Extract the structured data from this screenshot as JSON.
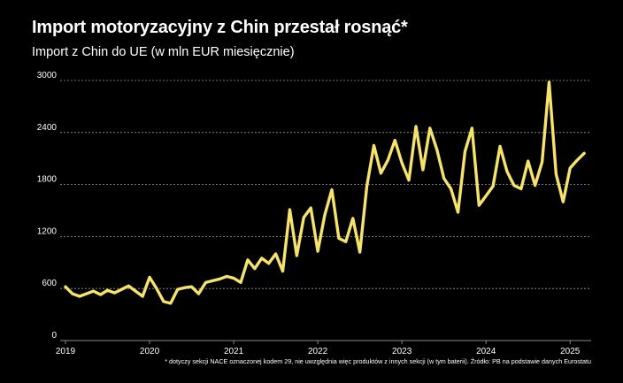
{
  "chart_data": {
    "type": "line",
    "title": "Import motoryzacyjny z Chin przestał rosnąć*",
    "subtitle": "Import z Chin do UE (w mln EUR miesięcznie)",
    "footnote": "* dotyczy sekcji NACE oznaczonej kodem 29, nie uwzględnia więc produktów z innych sekcji (w tym baterii). Źródło: PB na podstawie danych Eurostatu",
    "xlabel": "",
    "ylabel": "",
    "ylim": [
      0,
      3000
    ],
    "yticks": [
      "0",
      "600",
      "1200",
      "1800",
      "2400",
      "3000"
    ],
    "xticks": [
      {
        "label": "2019",
        "x": 2019.0
      },
      {
        "label": "2020",
        "x": 2020.0
      },
      {
        "label": "2021",
        "x": 2021.0
      },
      {
        "label": "2022",
        "x": 2022.0
      },
      {
        "label": "2023",
        "x": 2023.0
      },
      {
        "label": "2024",
        "x": 2024.0
      },
      {
        "label": "2025",
        "x": 2025.0
      }
    ],
    "xlim": [
      2019.0,
      2025.25
    ],
    "grid": "horizontal-dashed",
    "line_color": "#f5e36b",
    "series": [
      {
        "name": "",
        "x": [
          2019.0,
          2019.083,
          2019.167,
          2019.25,
          2019.333,
          2019.417,
          2019.5,
          2019.583,
          2019.667,
          2019.75,
          2019.833,
          2019.917,
          2020.0,
          2020.083,
          2020.167,
          2020.25,
          2020.333,
          2020.417,
          2020.5,
          2020.583,
          2020.667,
          2020.75,
          2020.833,
          2020.917,
          2021.0,
          2021.083,
          2021.167,
          2021.25,
          2021.333,
          2021.417,
          2021.5,
          2021.583,
          2021.667,
          2021.75,
          2021.833,
          2021.917,
          2022.0,
          2022.083,
          2022.167,
          2022.25,
          2022.333,
          2022.417,
          2022.5,
          2022.583,
          2022.667,
          2022.75,
          2022.833,
          2022.917,
          2023.0,
          2023.083,
          2023.167,
          2023.25,
          2023.333,
          2023.417,
          2023.5,
          2023.583,
          2023.667,
          2023.75,
          2023.833,
          2023.917,
          2024.0,
          2024.083,
          2024.167,
          2024.25,
          2024.333,
          2024.417,
          2024.5,
          2024.583,
          2024.667,
          2024.75,
          2024.833,
          2024.917,
          2025.0,
          2025.083,
          2025.167
        ],
        "values": [
          620,
          540,
          510,
          540,
          570,
          530,
          580,
          550,
          590,
          630,
          570,
          510,
          730,
          600,
          450,
          430,
          590,
          610,
          620,
          540,
          670,
          690,
          710,
          740,
          720,
          670,
          930,
          830,
          950,
          890,
          1000,
          800,
          1510,
          980,
          1420,
          1530,
          1030,
          1450,
          1740,
          1180,
          1140,
          1410,
          1020,
          1780,
          2250,
          1930,
          2080,
          2310,
          2050,
          1850,
          2470,
          1970,
          2450,
          2200,
          1870,
          1750,
          1480,
          2180,
          2450,
          1560,
          1670,
          1780,
          2240,
          1950,
          1790,
          1750,
          2070,
          1790,
          2060,
          2980,
          1920,
          1600,
          1990,
          2080,
          2160
        ]
      }
    ]
  }
}
